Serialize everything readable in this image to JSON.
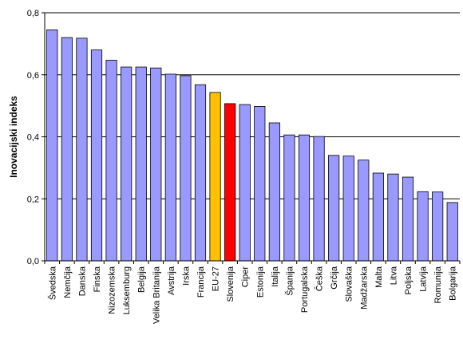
{
  "chart_data": {
    "type": "bar",
    "title": "",
    "xlabel": "",
    "ylabel": "Inovacijski indeks",
    "ylim": [
      0,
      0.8
    ],
    "yticks": [
      "0,0",
      "0,2",
      "0,4",
      "0,6",
      "0,8"
    ],
    "grid": true,
    "legend": "none",
    "colors": {
      "default": "#9999FF",
      "eu": "#FFC000",
      "highlight": "#FF0000"
    },
    "categories": [
      "Švedska",
      "Nemčija",
      "Danska",
      "Finska",
      "Nizozemska",
      "Luksemburg",
      "Belgija",
      "Velika Britanija",
      "Avstrija",
      "Irska",
      "Francija",
      "EU-27",
      "Slovenija",
      "Ciper",
      "Estonija",
      "Italija",
      "Španija",
      "Portugalska",
      "Češka",
      "Grčija",
      "Slovaška",
      "Madžarska",
      "Malta",
      "Litva",
      "Poljska",
      "Latvija",
      "Romunija",
      "Bolgarija"
    ],
    "values": [
      0.745,
      0.72,
      0.718,
      0.68,
      0.647,
      0.625,
      0.625,
      0.622,
      0.602,
      0.597,
      0.568,
      0.543,
      0.507,
      0.504,
      0.498,
      0.445,
      0.406,
      0.406,
      0.401,
      0.34,
      0.338,
      0.325,
      0.283,
      0.28,
      0.27,
      0.223,
      0.222,
      0.188
    ],
    "bar_colors": [
      "default",
      "default",
      "default",
      "default",
      "default",
      "default",
      "default",
      "default",
      "default",
      "default",
      "default",
      "eu",
      "highlight",
      "default",
      "default",
      "default",
      "default",
      "default",
      "default",
      "default",
      "default",
      "default",
      "default",
      "default",
      "default",
      "default",
      "default",
      "default"
    ]
  }
}
